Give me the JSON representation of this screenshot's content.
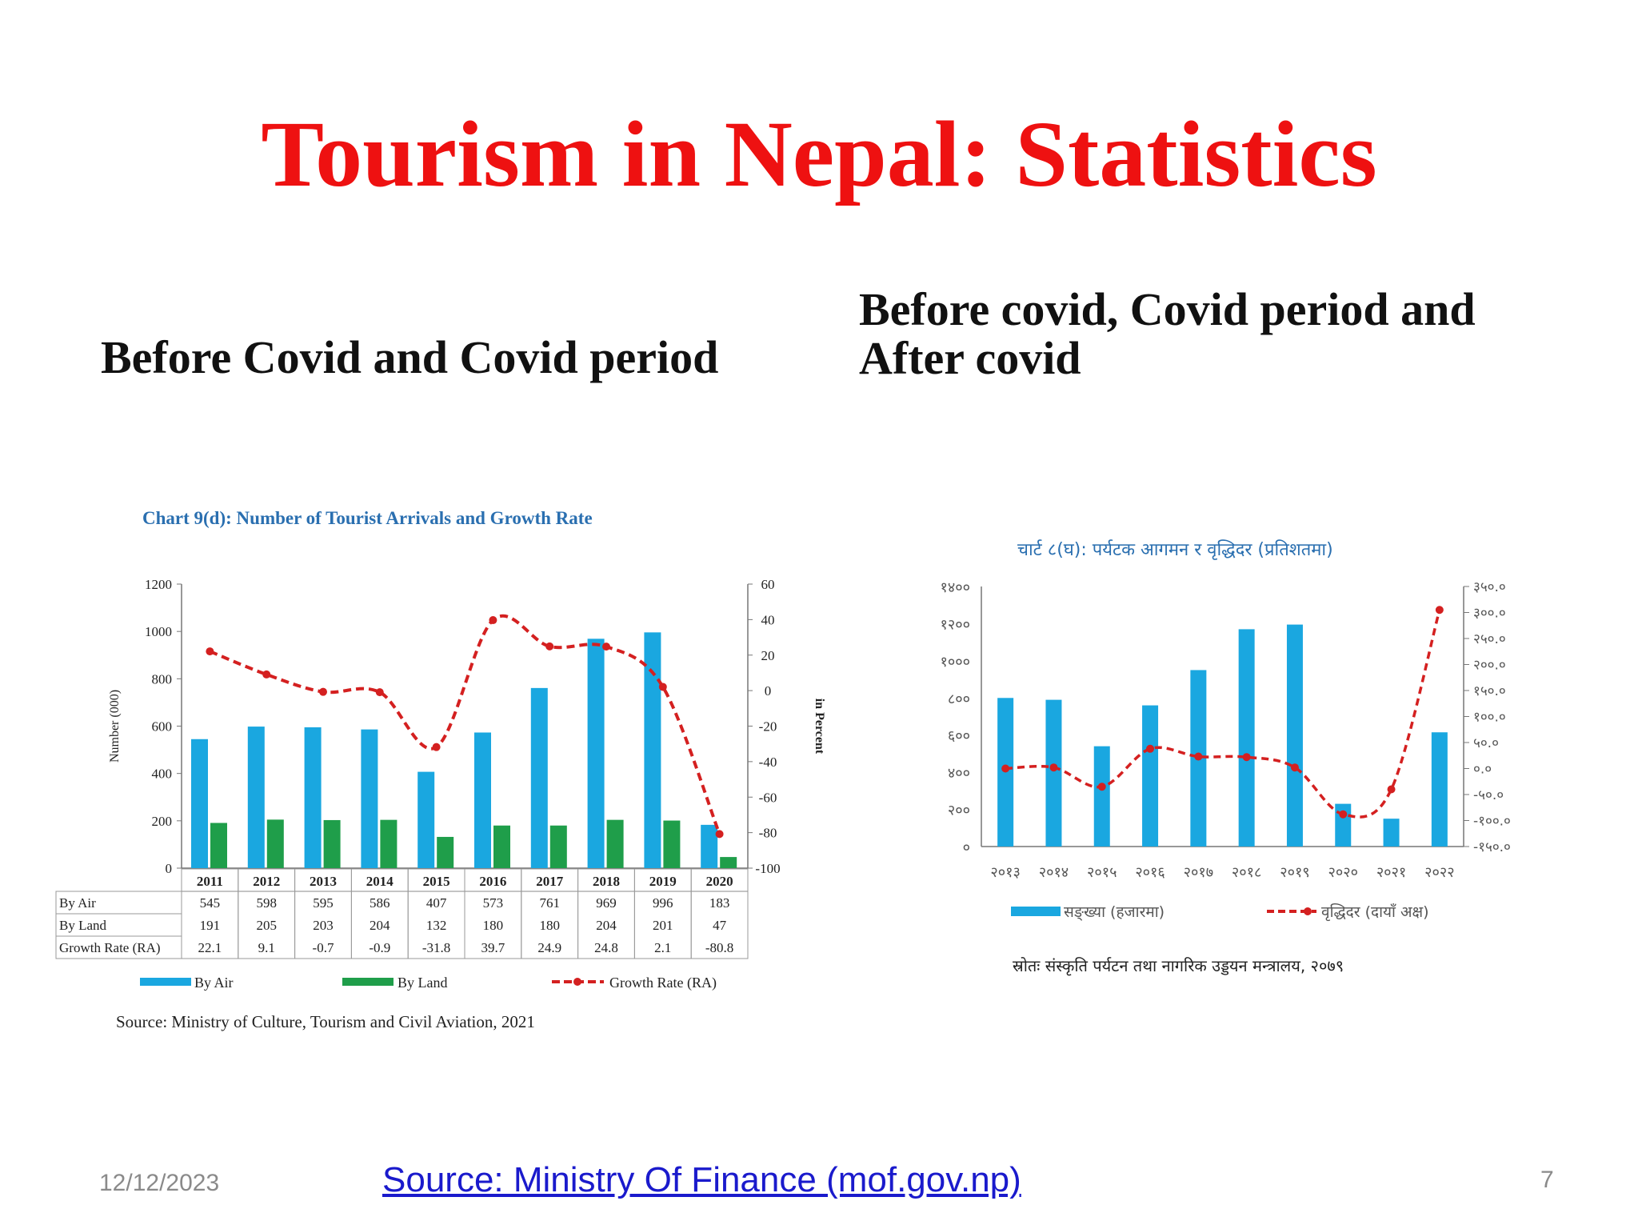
{
  "slide": {
    "title": "Tourism in Nepal: Statistics",
    "subtitle_left": "Before Covid  and Covid period",
    "subtitle_right": "Before covid, Covid period and After covid",
    "footer_date": "12/12/2023",
    "footer_source": "Source: Ministry Of Finance (mof.gov.np)",
    "page_number": "7"
  },
  "colors": {
    "title": "#ee1111",
    "bar_air": "#1aa7e0",
    "bar_land": "#1f9e4a",
    "line": "#d42020",
    "chart_title": "#2a6fb0"
  },
  "chart_data": [
    {
      "type": "bar",
      "title": "Chart 9(d): Number of Tourist Arrivals and Growth Rate",
      "categories": [
        "2011",
        "2012",
        "2013",
        "2014",
        "2015",
        "2016",
        "2017",
        "2018",
        "2019",
        "2020"
      ],
      "series": [
        {
          "name": "By Air",
          "type": "bar",
          "axis": "left",
          "values": [
            545,
            598,
            595,
            586,
            407,
            573,
            761,
            969,
            996,
            183
          ]
        },
        {
          "name": "By Land",
          "type": "bar",
          "axis": "left",
          "values": [
            191,
            205,
            203,
            204,
            132,
            180,
            180,
            204,
            201,
            47
          ]
        },
        {
          "name": "Growth Rate (RA)",
          "type": "line",
          "axis": "right",
          "values": [
            22.1,
            9.1,
            -0.7,
            -0.9,
            -31.8,
            39.7,
            24.9,
            24.8,
            2.1,
            -80.8
          ]
        }
      ],
      "table_labels": [
        "By Air",
        "By Land",
        "Growth Rate (RA)"
      ],
      "table_values": [
        [
          "545",
          "598",
          "595",
          "586",
          "407",
          "573",
          "761",
          "969",
          "996",
          "183"
        ],
        [
          "191",
          "205",
          "203",
          "204",
          "132",
          "180",
          "180",
          "204",
          "201",
          "47"
        ],
        [
          "22.1",
          "9.1",
          "-0.7",
          "-0.9",
          "-31.8",
          "39.7",
          "24.9",
          "24.8",
          "2.1",
          "-80.8"
        ]
      ],
      "ylabel": "Number (000)",
      "y2label": "in Percent",
      "ylim": [
        0,
        1200
      ],
      "y2lim": [
        -100,
        60
      ],
      "yticks": [
        "0",
        "200",
        "400",
        "600",
        "800",
        "1000",
        "1200"
      ],
      "y2ticks": [
        "-100",
        "-80",
        "-60",
        "-40",
        "-20",
        "0",
        "20",
        "40",
        "60"
      ],
      "legend": [
        "By Air",
        "By Land",
        "Growth Rate (RA)"
      ],
      "source": "Source: Ministry of Culture, Tourism and Civil Aviation, 2021",
      "grid": false
    },
    {
      "type": "bar",
      "title": "चार्ट ८(घ): पर्यटक आगमन र वृद्धिदर (प्रतिशतमा)",
      "categories": [
        "२०१३",
        "२०१४",
        "२०१५",
        "२०१६",
        "२०१७",
        "२०१८",
        "२०१९",
        "२०२०",
        "२०२१",
        "२०२२"
      ],
      "series": [
        {
          "name": "सङ्ख्या (हजारमा)",
          "type": "bar",
          "axis": "left",
          "values": [
            800,
            790,
            540,
            760,
            950,
            1170,
            1195,
            230,
            150,
            615
          ]
        },
        {
          "name": "वृद्धिदर (दायाँ अक्ष)",
          "type": "line",
          "axis": "right",
          "values": [
            0,
            2,
            -35,
            38,
            23,
            22,
            2,
            -88,
            -40,
            305
          ]
        }
      ],
      "ylim": [
        0,
        1400
      ],
      "y2lim": [
        -150,
        350
      ],
      "yticks": [
        "०",
        "२००",
        "४००",
        "६००",
        "८००",
        "१०००",
        "१२००",
        "१४००"
      ],
      "y2ticks": [
        "-१५०.०",
        "-१००.०",
        "-५०.०",
        "०.०",
        "५०.०",
        "१००.०",
        "१५०.०",
        "२००.०",
        "२५०.०",
        "३००.०",
        "३५०.०"
      ],
      "legend": [
        "सङ्ख्या (हजारमा)",
        "वृद्धिदर (दायाँ अक्ष)"
      ],
      "source": "स्रोतः संस्कृति पर्यटन तथा नागरिक उड्डयन मन्त्रालय, २०७९",
      "grid": false
    }
  ]
}
